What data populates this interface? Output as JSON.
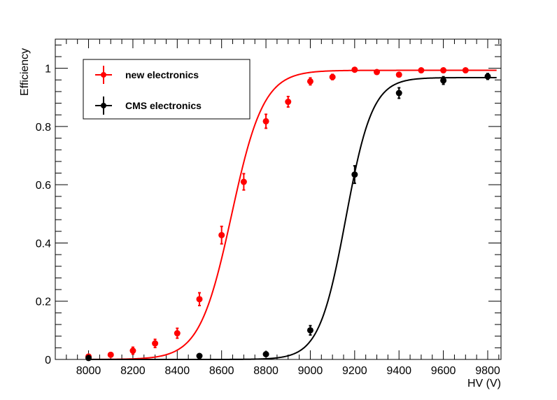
{
  "chart_data": {
    "type": "scatter",
    "title": "",
    "xlabel": "HV (V)",
    "ylabel": "Efficiency",
    "xlim": [
      7850,
      9860
    ],
    "ylim": [
      0,
      1.1
    ],
    "x_ticks": [
      8000,
      8200,
      8400,
      8600,
      8800,
      9000,
      9200,
      9400,
      9600,
      9800
    ],
    "y_ticks": [
      0,
      0.2,
      0.4,
      0.6,
      0.8,
      1
    ],
    "x_tick_labels": [
      "8000",
      "8200",
      "8400",
      "8600",
      "8800",
      "9000",
      "9200",
      "9400",
      "9600",
      "9800"
    ],
    "y_tick_labels": [
      "0",
      "0.2",
      "0.4",
      "0.6",
      "0.8",
      "1"
    ],
    "grid": false,
    "legend_position": "top-left",
    "series": [
      {
        "name": "new electronics",
        "color": "#ff0000",
        "points": [
          {
            "x": 8000,
            "y": 0.01,
            "err": 0.007
          },
          {
            "x": 8100,
            "y": 0.016,
            "err": 0.007
          },
          {
            "x": 8200,
            "y": 0.03,
            "err": 0.012
          },
          {
            "x": 8300,
            "y": 0.055,
            "err": 0.014
          },
          {
            "x": 8400,
            "y": 0.09,
            "err": 0.017
          },
          {
            "x": 8500,
            "y": 0.207,
            "err": 0.022
          },
          {
            "x": 8600,
            "y": 0.427,
            "err": 0.03
          },
          {
            "x": 8700,
            "y": 0.61,
            "err": 0.028
          },
          {
            "x": 8800,
            "y": 0.818,
            "err": 0.024
          },
          {
            "x": 8900,
            "y": 0.885,
            "err": 0.018
          },
          {
            "x": 9000,
            "y": 0.955,
            "err": 0.012
          },
          {
            "x": 9100,
            "y": 0.97,
            "err": 0.009
          },
          {
            "x": 9200,
            "y": 0.995,
            "err": 0.006
          },
          {
            "x": 9300,
            "y": 0.987,
            "err": 0.006
          },
          {
            "x": 9400,
            "y": 0.978,
            "err": 0.006
          },
          {
            "x": 9500,
            "y": 0.993,
            "err": 0.005
          },
          {
            "x": 9600,
            "y": 0.993,
            "err": 0.005
          },
          {
            "x": 9700,
            "y": 0.993,
            "err": 0.005
          }
        ],
        "fit": {
          "plateau": 0.993,
          "midpoint": 8645,
          "width": 72
        }
      },
      {
        "name": "CMS electronics",
        "color": "#000000",
        "points": [
          {
            "x": 8000,
            "y": 0.005,
            "err": 0.004
          },
          {
            "x": 8500,
            "y": 0.012,
            "err": 0.005
          },
          {
            "x": 8800,
            "y": 0.018,
            "err": 0.006
          },
          {
            "x": 9000,
            "y": 0.1,
            "err": 0.016
          },
          {
            "x": 9200,
            "y": 0.635,
            "err": 0.03
          },
          {
            "x": 9400,
            "y": 0.915,
            "err": 0.018
          },
          {
            "x": 9600,
            "y": 0.958,
            "err": 0.013
          },
          {
            "x": 9800,
            "y": 0.972,
            "err": 0.01
          }
        ],
        "fit": {
          "plateau": 0.968,
          "midpoint": 9160,
          "width": 60
        }
      }
    ]
  }
}
